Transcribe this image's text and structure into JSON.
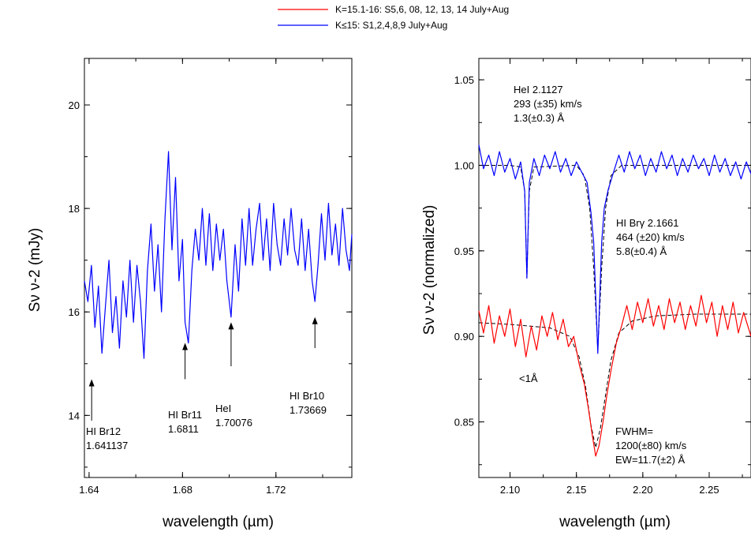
{
  "legend": [
    {
      "label": "K=15.1-16: S5,6, 08, 12, 13, 14  July+Aug",
      "color": "#ff0000"
    },
    {
      "label": "K≤15: S1,2,4,8,9 July+Aug",
      "color": "#0000ff"
    }
  ],
  "chart_data": [
    {
      "type": "line",
      "xlabel": "wavelength (µm)",
      "ylabel": "Sν ν-2 (mJy)",
      "xlim": [
        1.638,
        1.7525
      ],
      "ylim": [
        12.8,
        20.9
      ],
      "xticks": [
        1.64,
        1.68,
        1.72
      ],
      "xtick_labels": [
        "1.64",
        "1.68",
        "1.72"
      ],
      "yticks": [
        14,
        16,
        18,
        20
      ],
      "ytick_labels": [
        "14",
        "16",
        "18",
        "20"
      ],
      "series": [
        {
          "color": "#0000ff",
          "points": [
            [
              1.638,
              16.6
            ],
            [
              1.6395,
              16.2
            ],
            [
              1.641,
              16.9
            ],
            [
              1.6425,
              15.7
            ],
            [
              1.644,
              16.5
            ],
            [
              1.6455,
              15.2
            ],
            [
              1.647,
              16.1
            ],
            [
              1.6485,
              17.0
            ],
            [
              1.65,
              15.6
            ],
            [
              1.6515,
              16.3
            ],
            [
              1.653,
              15.3
            ],
            [
              1.6545,
              16.6
            ],
            [
              1.656,
              15.9
            ],
            [
              1.6575,
              17.0
            ],
            [
              1.659,
              15.8
            ],
            [
              1.6605,
              16.9
            ],
            [
              1.662,
              16.2
            ],
            [
              1.6635,
              15.1
            ],
            [
              1.665,
              16.8
            ],
            [
              1.6665,
              17.7
            ],
            [
              1.668,
              16.4
            ],
            [
              1.6695,
              17.3
            ],
            [
              1.671,
              16.0
            ],
            [
              1.6725,
              17.8
            ],
            [
              1.674,
              19.1
            ],
            [
              1.6755,
              17.2
            ],
            [
              1.677,
              18.6
            ],
            [
              1.6785,
              16.6
            ],
            [
              1.68,
              17.4
            ],
            [
              1.6811,
              15.8
            ],
            [
              1.6825,
              15.4
            ],
            [
              1.684,
              16.8
            ],
            [
              1.6855,
              17.6
            ],
            [
              1.687,
              17.0
            ],
            [
              1.6885,
              18.0
            ],
            [
              1.69,
              16.9
            ],
            [
              1.6915,
              17.9
            ],
            [
              1.693,
              16.8
            ],
            [
              1.6945,
              17.7
            ],
            [
              1.696,
              17.0
            ],
            [
              1.6975,
              17.6
            ],
            [
              1.699,
              16.6
            ],
            [
              1.7008,
              15.9
            ],
            [
              1.7025,
              17.3
            ],
            [
              1.704,
              16.4
            ],
            [
              1.7055,
              17.8
            ],
            [
              1.707,
              16.9
            ],
            [
              1.7085,
              18.0
            ],
            [
              1.71,
              16.9
            ],
            [
              1.7115,
              17.6
            ],
            [
              1.713,
              18.1
            ],
            [
              1.7145,
              17.0
            ],
            [
              1.716,
              17.8
            ],
            [
              1.7175,
              16.8
            ],
            [
              1.719,
              18.1
            ],
            [
              1.7205,
              17.3
            ],
            [
              1.722,
              16.9
            ],
            [
              1.7235,
              17.8
            ],
            [
              1.725,
              17.1
            ],
            [
              1.7265,
              18.0
            ],
            [
              1.728,
              17.2
            ],
            [
              1.7295,
              16.9
            ],
            [
              1.731,
              17.8
            ],
            [
              1.7325,
              16.8
            ],
            [
              1.734,
              17.6
            ],
            [
              1.7355,
              16.6
            ],
            [
              1.7367,
              16.2
            ],
            [
              1.738,
              16.9
            ],
            [
              1.7395,
              17.9
            ],
            [
              1.741,
              17.0
            ],
            [
              1.7425,
              18.1
            ],
            [
              1.744,
              17.1
            ],
            [
              1.7455,
              17.7
            ],
            [
              1.747,
              16.9
            ],
            [
              1.7485,
              18.0
            ],
            [
              1.75,
              17.2
            ],
            [
              1.7515,
              16.8
            ],
            [
              1.7525,
              17.5
            ]
          ]
        }
      ],
      "annotations": [
        {
          "lines": [
            "HI Br12",
            "1.641137"
          ],
          "arrow_x": 1.6411,
          "arrow_from": 13.9,
          "arrow_to": 14.7
        },
        {
          "lines": [
            "HI Br11",
            "1.6811"
          ],
          "arrow_x": 1.6811,
          "arrow_from": 14.7,
          "arrow_to": 15.4
        },
        {
          "lines": [
            "HeI",
            "1.70076"
          ],
          "arrow_x": 1.7008,
          "arrow_from": 14.95,
          "arrow_to": 15.8
        },
        {
          "lines": [
            "HI Br10",
            "1.73669"
          ],
          "arrow_x": 1.7367,
          "arrow_from": 15.3,
          "arrow_to": 15.9
        }
      ]
    },
    {
      "type": "line",
      "xlabel": "wavelength (µm)",
      "ylabel": "Sν ν-2 (normalized)",
      "xlim": [
        2.0765,
        2.2815
      ],
      "ylim": [
        0.8175,
        1.0625
      ],
      "xticks": [
        2.1,
        2.15,
        2.2,
        2.25
      ],
      "xtick_labels": [
        "2.10",
        "2.15",
        "2.20",
        "2.25"
      ],
      "yticks": [
        0.85,
        0.9,
        0.95,
        1.0,
        1.05
      ],
      "ytick_labels": [
        "0.85",
        "0.90",
        "0.95",
        "1.00",
        "1.05"
      ],
      "series": [
        {
          "color": "#0000ff",
          "points": [
            [
              2.0765,
              1.012
            ],
            [
              2.08,
              0.998
            ],
            [
              2.084,
              1.006
            ],
            [
              2.088,
              0.994
            ],
            [
              2.092,
              1.008
            ],
            [
              2.096,
              0.996
            ],
            [
              2.1,
              1.004
            ],
            [
              2.104,
              0.992
            ],
            [
              2.108,
              1.002
            ],
            [
              2.111,
              0.985
            ],
            [
              2.1127,
              0.934
            ],
            [
              2.1145,
              0.99
            ],
            [
              2.118,
              1.004
            ],
            [
              2.122,
              0.994
            ],
            [
              2.126,
              1.006
            ],
            [
              2.13,
              0.998
            ],
            [
              2.134,
              1.008
            ],
            [
              2.138,
              0.996
            ],
            [
              2.142,
              1.004
            ],
            [
              2.146,
              0.994
            ],
            [
              2.15,
              1.002
            ],
            [
              2.154,
              0.996
            ],
            [
              2.158,
              0.99
            ],
            [
              2.161,
              0.972
            ],
            [
              2.163,
              0.955
            ],
            [
              2.1661,
              0.89
            ],
            [
              2.169,
              0.955
            ],
            [
              2.171,
              0.975
            ],
            [
              2.174,
              0.986
            ],
            [
              2.178,
              0.996
            ],
            [
              2.182,
              1.006
            ],
            [
              2.186,
              0.996
            ],
            [
              2.19,
              1.008
            ],
            [
              2.194,
              0.998
            ],
            [
              2.198,
              1.006
            ],
            [
              2.202,
              0.994
            ],
            [
              2.206,
              1.004
            ],
            [
              2.21,
              0.996
            ],
            [
              2.214,
              1.008
            ],
            [
              2.218,
              0.998
            ],
            [
              2.222,
              1.006
            ],
            [
              2.226,
              0.994
            ],
            [
              2.23,
              1.004
            ],
            [
              2.234,
              0.996
            ],
            [
              2.238,
              1.006
            ],
            [
              2.242,
              0.998
            ],
            [
              2.246,
              1.004
            ],
            [
              2.25,
              0.994
            ],
            [
              2.254,
              1.006
            ],
            [
              2.258,
              0.996
            ],
            [
              2.262,
              1.004
            ],
            [
              2.266,
              0.994
            ],
            [
              2.27,
              1.002
            ],
            [
              2.274,
              0.992
            ],
            [
              2.278,
              1.002
            ],
            [
              2.2815,
              0.995
            ]
          ]
        },
        {
          "color": "#ff0000",
          "points": [
            [
              2.0765,
              0.915
            ],
            [
              2.08,
              0.902
            ],
            [
              2.084,
              0.918
            ],
            [
              2.088,
              0.896
            ],
            [
              2.092,
              0.912
            ],
            [
              2.096,
              0.9
            ],
            [
              2.1,
              0.916
            ],
            [
              2.104,
              0.894
            ],
            [
              2.108,
              0.91
            ],
            [
              2.112,
              0.888
            ],
            [
              2.116,
              0.906
            ],
            [
              2.12,
              0.892
            ],
            [
              2.124,
              0.912
            ],
            [
              2.128,
              0.9
            ],
            [
              2.132,
              0.914
            ],
            [
              2.136,
              0.898
            ],
            [
              2.14,
              0.91
            ],
            [
              2.144,
              0.894
            ],
            [
              2.148,
              0.9
            ],
            [
              2.152,
              0.884
            ],
            [
              2.156,
              0.872
            ],
            [
              2.159,
              0.858
            ],
            [
              2.162,
              0.842
            ],
            [
              2.1645,
              0.83
            ],
            [
              2.167,
              0.836
            ],
            [
              2.17,
              0.85
            ],
            [
              2.173,
              0.866
            ],
            [
              2.176,
              0.88
            ],
            [
              2.18,
              0.896
            ],
            [
              2.184,
              0.906
            ],
            [
              2.188,
              0.918
            ],
            [
              2.192,
              0.904
            ],
            [
              2.196,
              0.92
            ],
            [
              2.2,
              0.908
            ],
            [
              2.204,
              0.922
            ],
            [
              2.208,
              0.906
            ],
            [
              2.212,
              0.918
            ],
            [
              2.216,
              0.904
            ],
            [
              2.22,
              0.922
            ],
            [
              2.224,
              0.908
            ],
            [
              2.228,
              0.92
            ],
            [
              2.232,
              0.904
            ],
            [
              2.236,
              0.918
            ],
            [
              2.24,
              0.906
            ],
            [
              2.244,
              0.924
            ],
            [
              2.248,
              0.908
            ],
            [
              2.252,
              0.92
            ],
            [
              2.256,
              0.9
            ],
            [
              2.26,
              0.918
            ],
            [
              2.264,
              0.904
            ],
            [
              2.268,
              0.92
            ],
            [
              2.272,
              0.902
            ],
            [
              2.276,
              0.914
            ],
            [
              2.2815,
              0.9
            ]
          ]
        }
      ],
      "fits": [
        {
          "color": "#000000",
          "style": "dashed",
          "points": [
            [
              2.0765,
              1.0
            ],
            [
              2.1,
              1.0
            ],
            [
              2.108,
              0.999
            ],
            [
              2.111,
              0.985
            ],
            [
              2.1127,
              0.934
            ],
            [
              2.1145,
              0.985
            ],
            [
              2.118,
              0.999
            ],
            [
              2.15,
              1.0
            ],
            [
              2.156,
              0.994
            ],
            [
              2.16,
              0.975
            ],
            [
              2.163,
              0.94
            ],
            [
              2.1661,
              0.892
            ],
            [
              2.169,
              0.94
            ],
            [
              2.172,
              0.975
            ],
            [
              2.176,
              0.994
            ],
            [
              2.184,
              1.0
            ],
            [
              2.2815,
              1.0
            ]
          ]
        },
        {
          "color": "#000000",
          "style": "dashed",
          "points": [
            [
              2.0765,
              0.908
            ],
            [
              2.1,
              0.907
            ],
            [
              2.13,
              0.905
            ],
            [
              2.145,
              0.9
            ],
            [
              2.152,
              0.888
            ],
            [
              2.157,
              0.87
            ],
            [
              2.161,
              0.848
            ],
            [
              2.1645,
              0.835
            ],
            [
              2.168,
              0.846
            ],
            [
              2.172,
              0.866
            ],
            [
              2.176,
              0.886
            ],
            [
              2.182,
              0.902
            ],
            [
              2.192,
              0.909
            ],
            [
              2.21,
              0.912
            ],
            [
              2.24,
              0.913
            ],
            [
              2.2815,
              0.913
            ]
          ]
        }
      ],
      "annotations": [
        {
          "lines": [
            "HeI 2.1127",
            "293 (±35) km/s",
            "1.3(±0.3) Å"
          ]
        },
        {
          "lines": [
            "HI Brγ 2.1661",
            "464 (±20) km/s",
            "5.8(±0.4) Å"
          ]
        },
        {
          "lines": [
            "<1Å"
          ]
        },
        {
          "lines": [
            "FWHM=",
            "1200(±80) km/s",
            "EW=11.7(±2) Å"
          ]
        }
      ]
    }
  ]
}
